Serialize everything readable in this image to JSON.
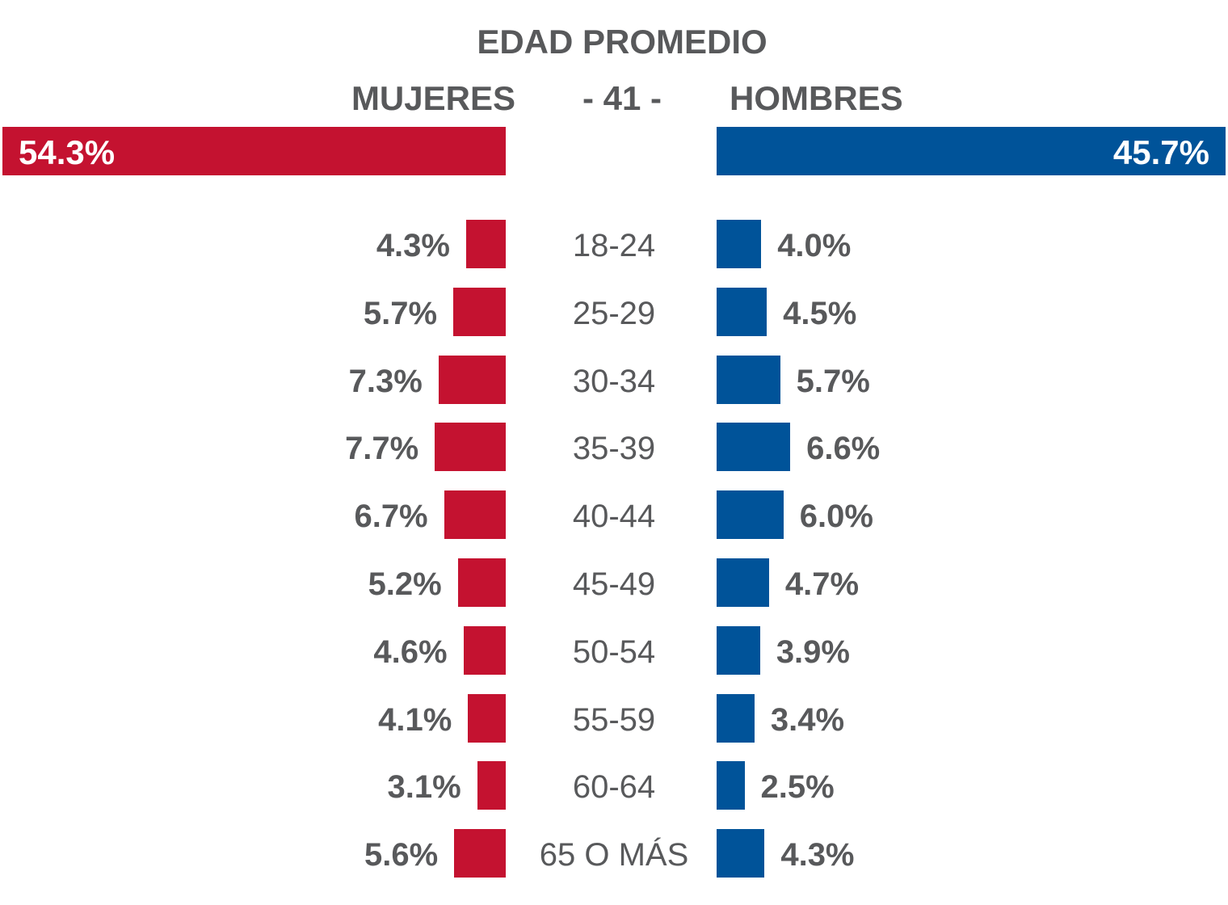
{
  "chart_data": {
    "type": "bar",
    "title": "EDAD PROMEDIO",
    "average_age": "- 41 -",
    "colors": {
      "mujeres": "#c41230",
      "hombres": "#005399",
      "text": "#58595b"
    },
    "totals": [
      {
        "name": "MUJERES",
        "value": 54.3,
        "label": "54.3%"
      },
      {
        "name": "HOMBRES",
        "value": 45.7,
        "label": "45.7%"
      }
    ],
    "categories": [
      "18-24",
      "25-29",
      "30-34",
      "35-39",
      "40-44",
      "45-49",
      "50-54",
      "55-59",
      "60-64",
      "65 O MÁS"
    ],
    "series": [
      {
        "name": "MUJERES",
        "values": [
          4.3,
          5.7,
          7.3,
          7.7,
          6.7,
          5.2,
          4.6,
          4.1,
          3.1,
          5.6
        ],
        "labels": [
          "4.3%",
          "5.7%",
          "7.3%",
          "7.7%",
          "6.7%",
          "5.2%",
          "4.6%",
          "4.1%",
          "3.1%",
          "5.6%"
        ]
      },
      {
        "name": "HOMBRES",
        "values": [
          4.0,
          4.5,
          5.7,
          6.6,
          6.0,
          4.7,
          3.9,
          3.4,
          2.5,
          4.3
        ],
        "labels": [
          "4.0%",
          "4.5%",
          "5.7%",
          "6.6%",
          "6.0%",
          "4.7%",
          "3.9%",
          "3.4%",
          "2.5%",
          "4.3%"
        ]
      }
    ]
  }
}
